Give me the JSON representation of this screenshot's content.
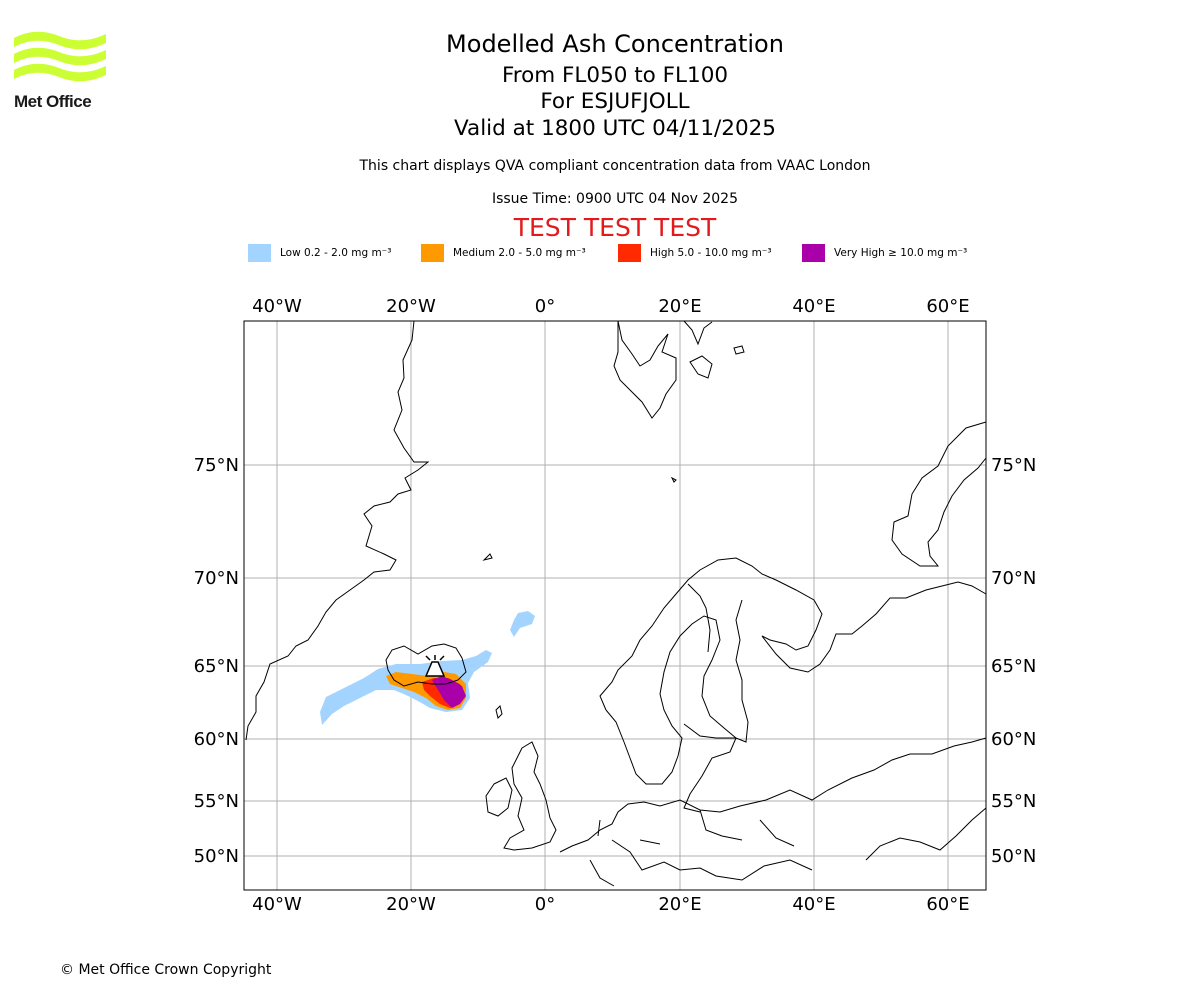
{
  "logo": {
    "text": "Met Office",
    "color": "#ccff33"
  },
  "header": {
    "title": "Modelled Ash Concentration",
    "level_range": "From FL050 to FL100",
    "volcano": "For ESJUFJOLL",
    "validity": "Valid at 1800 UTC 04/11/2025",
    "description": "This chart displays QVA compliant concentration data from VAAC London",
    "issue_time": "Issue Time: 0900 UTC 04 Nov 2025",
    "test_banner": "TEST TEST TEST"
  },
  "legend": [
    {
      "label": "Low 0.2 - 2.0 mg m⁻³",
      "color": "#a3d4ff"
    },
    {
      "label": "Medium 2.0 - 5.0 mg m⁻³",
      "color": "#ff9900"
    },
    {
      "label": "High 5.0 - 10.0 mg m⁻³",
      "color": "#ff2a00"
    },
    {
      "label": "Very High ≥ 10.0 mg m⁻³",
      "color": "#aa00aa"
    }
  ],
  "map": {
    "longitude_labels": [
      "40°W",
      "20°W",
      "0°",
      "20°E",
      "40°E",
      "60°E"
    ],
    "latitude_labels": [
      "75°N",
      "70°N",
      "65°N",
      "60°N",
      "55°N",
      "50°N"
    ],
    "grid_color": "#b0b0b0"
  },
  "footer": {
    "copyright": "© Met Office Crown Copyright"
  }
}
